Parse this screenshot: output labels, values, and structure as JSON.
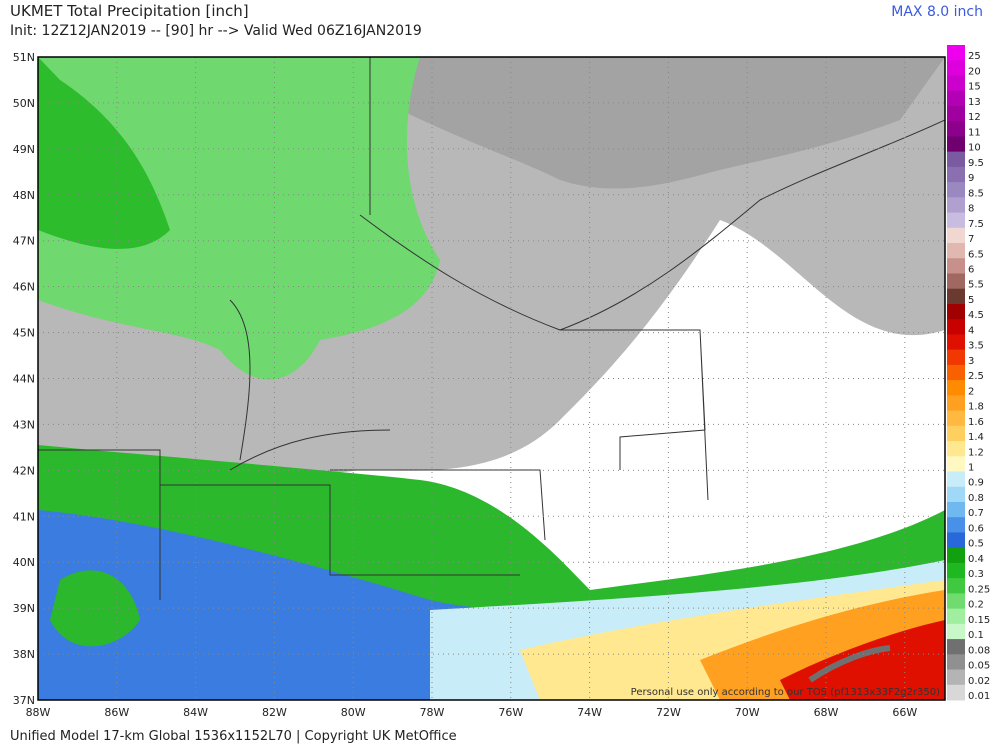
{
  "header": {
    "title": "UKMET Total Precipitation [inch]",
    "subtitle": "Init: 12Z12JAN2019 -- [90] hr --> Valid Wed 06Z16JAN2019",
    "max": "MAX 8.0 inch"
  },
  "map": {
    "lat_labels": [
      "51N",
      "50N",
      "49N",
      "48N",
      "47N",
      "46N",
      "45N",
      "44N",
      "43N",
      "42N",
      "41N",
      "40N",
      "39N",
      "38N",
      "37N"
    ],
    "lon_labels": [
      "88W",
      "86W",
      "84W",
      "82W",
      "80W",
      "78W",
      "76W",
      "74W",
      "72W",
      "70W",
      "68W",
      "66W"
    ],
    "watermark": "Personal use only according to our TOS (pf1313x33F2g2r350)"
  },
  "colorbar": {
    "labels": [
      "25",
      "20",
      "15",
      "13",
      "12",
      "11",
      "10",
      "9.5",
      "9",
      "8.5",
      "8",
      "7.5",
      "7",
      "6.5",
      "6",
      "5.5",
      "5",
      "4.5",
      "4",
      "3.5",
      "3",
      "2.5",
      "2",
      "1.8",
      "1.6",
      "1.4",
      "1.2",
      "1",
      "0.9",
      "0.8",
      "0.7",
      "0.6",
      "0.5",
      "0.4",
      "0.3",
      "0.25",
      "0.2",
      "0.15",
      "0.1",
      "0.08",
      "0.05",
      "0.02",
      "0.01"
    ],
    "colors": [
      "#ee00ee",
      "#dd00dd",
      "#cc00cc",
      "#b400b4",
      "#a000a0",
      "#8c008c",
      "#700070",
      "#7a5aa0",
      "#8a70b0",
      "#9a88c0",
      "#b0a0d0",
      "#c8bce0",
      "#f0d8d0",
      "#e0b8b0",
      "#c8908a",
      "#a06860",
      "#6a3a30",
      "#a00000",
      "#c80000",
      "#e01000",
      "#f03800",
      "#f86000",
      "#ff8c00",
      "#ffa020",
      "#ffb840",
      "#ffd060",
      "#ffe890",
      "#fff8c0",
      "#c8ecf8",
      "#a0d8f8",
      "#70b8f0",
      "#4890e8",
      "#2868d8",
      "#10a010",
      "#20b820",
      "#40c840",
      "#70dc70",
      "#a0eea0",
      "#c8f8c8",
      "#707070",
      "#909090",
      "#b4b4b4",
      "#d8d8d8"
    ]
  },
  "footer": "Unified Model 17-km Global 1536x1152L70 | Copyright UK MetOffice"
}
